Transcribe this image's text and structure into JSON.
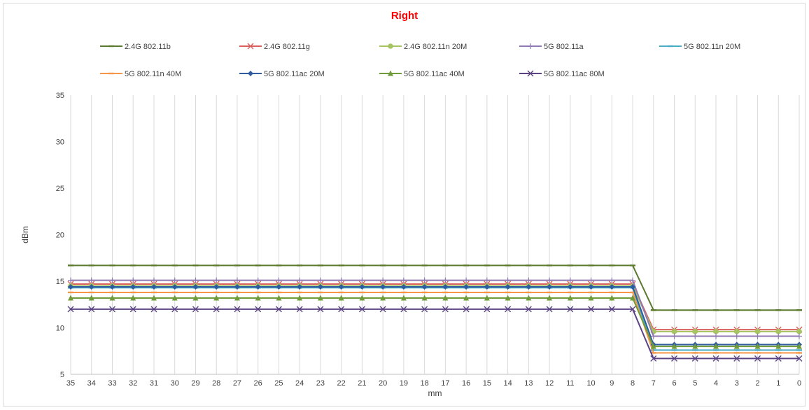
{
  "chart_data": {
    "type": "line",
    "title": "Right",
    "xlabel": "mm",
    "ylabel": "dBm",
    "x_categories": [
      "35",
      "34",
      "33",
      "32",
      "31",
      "30",
      "29",
      "28",
      "27",
      "26",
      "25",
      "24",
      "23",
      "22",
      "21",
      "20",
      "19",
      "18",
      "17",
      "16",
      "15",
      "14",
      "13",
      "12",
      "11",
      "10",
      "9",
      "8",
      "7",
      "6",
      "5",
      "4",
      "3",
      "2",
      "1",
      "0"
    ],
    "ylim": [
      5,
      35
    ],
    "yticks": [
      5,
      10,
      15,
      20,
      25,
      30,
      35
    ],
    "grid": "vertical",
    "legend_position": "top",
    "series": [
      {
        "name": "2.4G 802.11b",
        "color": "#5b7a2e",
        "marker": "dash",
        "before": 16.7,
        "after": 11.9
      },
      {
        "name": "2.4G 802.11g",
        "color": "#d9605c",
        "marker": "x",
        "before": 14.7,
        "after": 9.8
      },
      {
        "name": "2.4G 802.11n 20M",
        "color": "#a6c561",
        "marker": "circle",
        "before": 14.5,
        "after": 9.6
      },
      {
        "name": "5G 802.11a",
        "color": "#9179b3",
        "marker": "plus",
        "before": 15.1,
        "after": 9.1
      },
      {
        "name": "5G 802.11n 20M",
        "color": "#4bacc6",
        "marker": "dash",
        "before": 14.3,
        "after": 7.6
      },
      {
        "name": "5G 802.11n 40M",
        "color": "#f79646",
        "marker": "dash",
        "before": 13.8,
        "after": 7.3
      },
      {
        "name": "5G 802.11ac 20M",
        "color": "#2e5c9e",
        "marker": "diamond",
        "before": 14.4,
        "after": 8.2
      },
      {
        "name": "5G 802.11ac 40M",
        "color": "#6f9b3a",
        "marker": "triangle",
        "before": 13.2,
        "after": 8.0
      },
      {
        "name": "5G 802.11ac 80M",
        "color": "#5b4383",
        "marker": "x",
        "before": 12.0,
        "after": 6.7
      }
    ]
  }
}
